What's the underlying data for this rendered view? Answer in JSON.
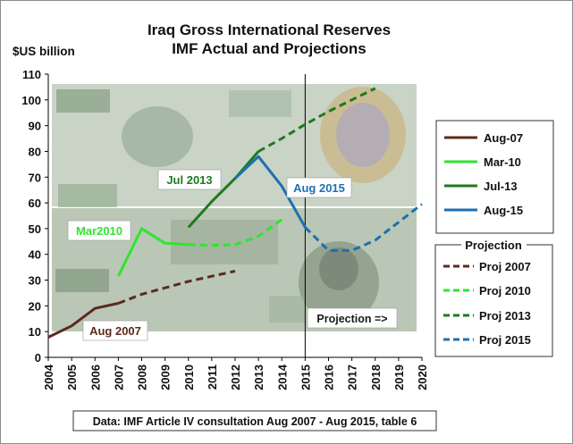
{
  "chart_data": {
    "type": "line",
    "title": "Iraq Gross International Reserves",
    "subtitle": "IMF Actual and Projections",
    "ylabel": "$US billion",
    "xlabel": "",
    "xlim": [
      2004,
      2020
    ],
    "ylim": [
      0,
      110
    ],
    "x_ticks": [
      "2004",
      "2005",
      "2006",
      "2007",
      "2008",
      "2009",
      "2010",
      "2011",
      "2012",
      "2013",
      "2014",
      "2015",
      "2016",
      "2017",
      "2018",
      "2019",
      "2020"
    ],
    "y_ticks": [
      "0",
      "10",
      "20",
      "30",
      "40",
      "50",
      "60",
      "70",
      "80",
      "90",
      "100",
      "110"
    ],
    "grid": false,
    "background": "banknote image",
    "series": [
      {
        "name": "Aug-07",
        "color": "#5c2a1e",
        "dash": "solid",
        "points": [
          [
            2004,
            7.8
          ],
          [
            2005,
            12.2
          ],
          [
            2006,
            19.0
          ],
          [
            2007,
            21.0
          ]
        ]
      },
      {
        "name": "Proj 2007",
        "color": "#5c2a1e",
        "dash": "dashed",
        "points": [
          [
            2007,
            21.0
          ],
          [
            2008,
            24.5
          ],
          [
            2009,
            27.0
          ],
          [
            2010,
            29.5
          ],
          [
            2011,
            31.5
          ],
          [
            2012,
            33.5
          ]
        ]
      },
      {
        "name": "Mar-10",
        "color": "#2ee62e",
        "dash": "solid",
        "points": [
          [
            2007,
            31.5
          ],
          [
            2008,
            50.0
          ],
          [
            2009,
            44.3
          ],
          [
            2010,
            43.8
          ]
        ]
      },
      {
        "name": "Proj 2010",
        "color": "#2ee62e",
        "dash": "dashed",
        "points": [
          [
            2010,
            43.8
          ],
          [
            2011,
            43.5
          ],
          [
            2012,
            43.8
          ],
          [
            2013,
            47.0
          ],
          [
            2014,
            53.5
          ]
        ]
      },
      {
        "name": "Jul-13",
        "color": "#1e7a1e",
        "dash": "solid",
        "points": [
          [
            2010,
            50.5
          ],
          [
            2011,
            60.5
          ],
          [
            2012,
            69.5
          ],
          [
            2013,
            80.0
          ]
        ]
      },
      {
        "name": "Proj 2013",
        "color": "#1e7a1e",
        "dash": "dashed",
        "points": [
          [
            2013,
            80.0
          ],
          [
            2014,
            85.0
          ],
          [
            2015,
            90.5
          ],
          [
            2016,
            95.5
          ],
          [
            2017,
            100.0
          ],
          [
            2018,
            104.5
          ]
        ]
      },
      {
        "name": "Aug-15",
        "color": "#1f6fb0",
        "dash": "solid",
        "points": [
          [
            2012,
            69.5
          ],
          [
            2013,
            78.0
          ],
          [
            2014,
            66.5
          ],
          [
            2015,
            50.5
          ]
        ]
      },
      {
        "name": "Proj 2015",
        "color": "#1f6fb0",
        "dash": "dashed",
        "points": [
          [
            2015,
            50.5
          ],
          [
            2016,
            41.5
          ],
          [
            2017,
            41.5
          ],
          [
            2018,
            45.5
          ],
          [
            2019,
            52.5
          ],
          [
            2020,
            59.5
          ]
        ]
      }
    ],
    "projection_divider_x": 2015,
    "annotations": [
      {
        "text": "Aug 2007",
        "x": 2008.0,
        "y": 10.5,
        "color": "#5c2a1e"
      },
      {
        "text": "Mar2010",
        "x": 2007.1,
        "y": 49.0,
        "color": "#2ee62e"
      },
      {
        "text": "Jul 2013",
        "x": 2011.0,
        "y": 68.5,
        "color": "#1e7a1e"
      },
      {
        "text": "Aug 2015",
        "x": 2014.6,
        "y": 66.0,
        "color": "#1f6fb0"
      },
      {
        "text": "Projection =>",
        "x": 2017.4,
        "y": 15.5,
        "color": "#1a1a1a"
      }
    ],
    "legend_actual": {
      "placement": "right",
      "entries": [
        "Aug-07",
        "Mar-10",
        "Jul-13",
        "Aug-15"
      ]
    },
    "legend_projection": {
      "placement": "right",
      "title": "Projection",
      "entries": [
        "Proj 2007",
        "Proj 2010",
        "Proj 2013",
        "Proj 2015"
      ]
    },
    "source": "Data: IMF Article IV consultation Aug 2007 - Aug 2015, table 6"
  }
}
